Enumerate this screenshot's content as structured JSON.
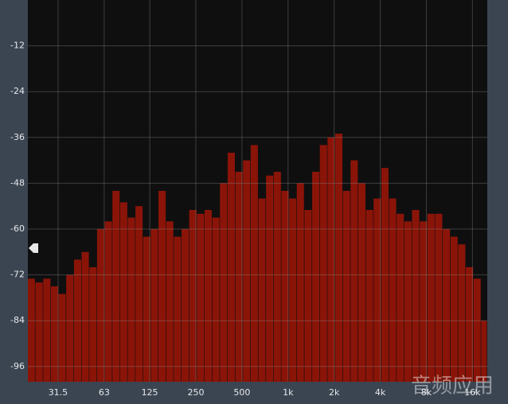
{
  "chart_data": {
    "type": "bar",
    "color": "#8a1408",
    "grid": true,
    "log_x": true,
    "xlim": [
      20,
      20000
    ],
    "ylim": [
      -100,
      0
    ],
    "yticks": [
      -12,
      -24,
      -36,
      -48,
      -60,
      -72,
      -84,
      -96
    ],
    "xticks": [
      31.5,
      63,
      125,
      250,
      500,
      {
        "value": 1000,
        "label": "1k"
      },
      {
        "value": 2000,
        "label": "2k"
      },
      {
        "value": 4000,
        "label": "4k"
      },
      {
        "value": 8000,
        "label": "8k"
      },
      {
        "value": 16000,
        "label": "16k"
      }
    ],
    "x": [
      20,
      22.4,
      25.2,
      28.3,
      31.7,
      35.6,
      40,
      44.9,
      50.4,
      56.6,
      63.5,
      71.3,
      80,
      89.8,
      100.8,
      113.1,
      127,
      142.5,
      160,
      179.6,
      201.6,
      226.3,
      254,
      285.1,
      320,
      359.2,
      403.2,
      452.5,
      508,
      570.2,
      640,
      718.4,
      806.3,
      905.1,
      1016,
      1140,
      1280,
      1437,
      1613,
      1810,
      2032,
      2281,
      2560,
      2874,
      3225,
      3620,
      4064,
      4561,
      5120,
      5747,
      6451,
      7241,
      8127,
      9123,
      10240,
      11494,
      12902,
      14482,
      16255,
      18246
    ],
    "values": [
      -73,
      -74,
      -73,
      -75,
      -77,
      -72,
      -68,
      -66,
      -70,
      -60,
      -58,
      -50,
      -53,
      -57,
      -54,
      -62,
      -60,
      -50,
      -58,
      -62,
      -60,
      -55,
      -56,
      -55,
      -57,
      -48,
      -40,
      -45,
      -42,
      -38,
      -52,
      -46,
      -45,
      -50,
      -52,
      -48,
      -55,
      -45,
      -38,
      -36,
      -35,
      -50,
      -42,
      -48,
      -55,
      -52,
      -44,
      -52,
      -56,
      -58,
      -55,
      -58,
      -56,
      -56,
      -60,
      -62,
      -64,
      -70,
      -73,
      -84
    ]
  },
  "watermark": "音频应用"
}
